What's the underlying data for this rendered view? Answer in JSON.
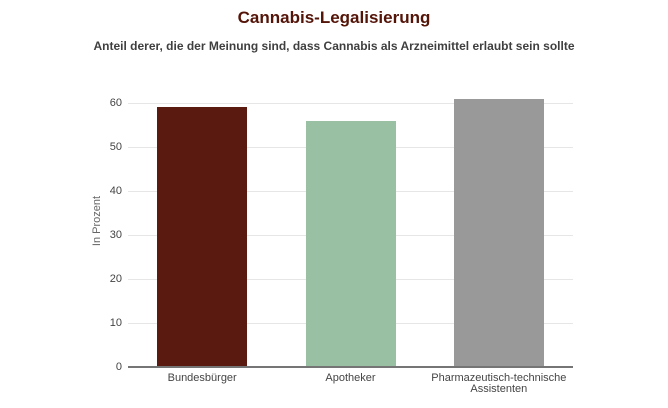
{
  "header": {
    "title": "Cannabis-Legalisierung",
    "subtitle": "Anteil derer, die der Meinung sind, dass Cannabis als Arzneimittel erlaubt sein sollte"
  },
  "chart_data": {
    "type": "bar",
    "title": "Cannabis-Legalisierung",
    "subtitle": "Anteil derer, die der Meinung sind, dass Cannabis als Arzneimittel erlaubt sein sollte",
    "categories": [
      "Bundesbürger",
      "Apotheker",
      "Pharmazeutisch-technische Assistenten"
    ],
    "values": [
      59,
      56,
      61
    ],
    "bar_colors": [
      "#5b1a0f",
      "#9ac0a3",
      "#999999"
    ],
    "xlabel": "",
    "ylabel": "In Prozent",
    "ylim": [
      0,
      60
    ],
    "yticks": [
      0,
      10,
      20,
      30,
      40,
      50,
      60
    ],
    "grid": true,
    "legend": "none",
    "style": {
      "background": "#ffffff",
      "title_color": "#541408",
      "subtitle_color": "#3f3f3f",
      "axis_text_color": "#444444",
      "axis_title_color": "#666666",
      "gridline_color": "#e6e6e6",
      "baseline_color": "#757575"
    }
  }
}
